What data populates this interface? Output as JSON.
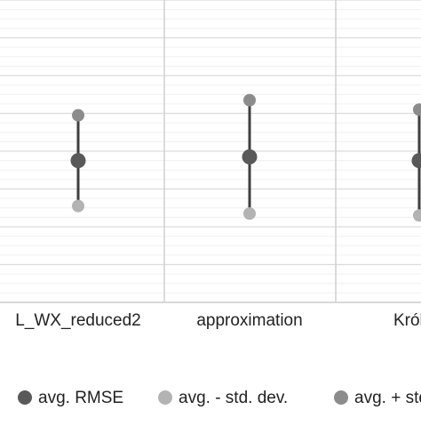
{
  "chart_data": {
    "type": "scatter",
    "title": "",
    "xlabel": "",
    "ylabel": "",
    "categories": [
      "L_WX_reduced2",
      "approximation",
      "Królikowski"
    ],
    "visible_category_labels": [
      "L_WX_reduced2",
      "approximation",
      "Króliko"
    ],
    "ylim": [
      0,
      16
    ],
    "grid": true,
    "legend_position": "bottom",
    "series": [
      {
        "name": "avg. RMSE",
        "color": "#595959",
        "values": [
          7.5,
          7.7,
          7.5
        ]
      },
      {
        "name": "avg. - std. dev.",
        "color": "#b3b3b3",
        "values": [
          5.1,
          4.7,
          4.6
        ]
      },
      {
        "name": "avg. + std. dev.",
        "color": "#8c8c8c",
        "values": [
          9.9,
          10.7,
          10.2
        ]
      }
    ],
    "visible_legend_labels": [
      "avg. RMSE",
      "avg. - std. dev.",
      "avg. + std"
    ]
  }
}
